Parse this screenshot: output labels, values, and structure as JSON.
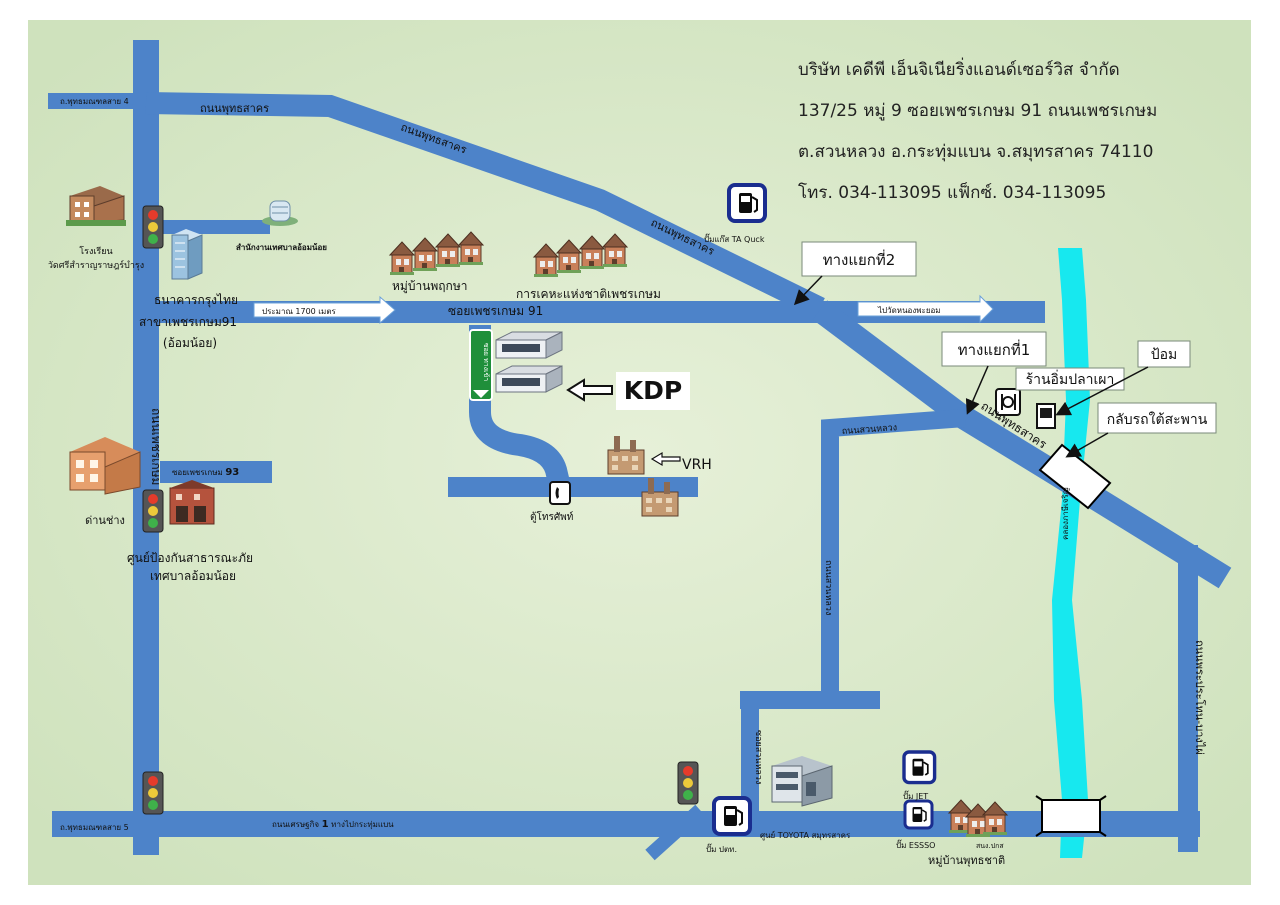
{
  "company": {
    "name": "บริษัท เคดีพี เอ็นจิเนียริ่งแอนด์เซอร์วิส จำกัด",
    "address1": "137/25 หมู่ 9 ซอยเพชรเกษม 91 ถนนเพชรเกษม",
    "address2": "ต.สวนหลวง อ.กระทุ่มแบน จ.สมุทรสาคร 74110",
    "phone": "โทร. 034-113095 แฟ็กซ์. 034-113095"
  },
  "roads": {
    "omnoi4": "ถ.พุทธมณฑลสาย 4",
    "buddhasakhon_top": "ถนนพุทธสาคร",
    "buddhasakhon_diag1": "ถนนพุทธสาคร",
    "buddhasakhon_diag2": "ถนนพุทธสาคร",
    "buddhasakhon_lower": "ถนนพุทธสาคร",
    "petchkasem": "ถนนเพชรเกษม",
    "soi91": "ซอยเพชรเกษม 91",
    "soi93_prefix": "ซอยเพชรเกษม",
    "soi93_num": "93",
    "distance": "ประมาณ 1700 เมตร",
    "to_omnoi": "ไปวัดหนองพะยอม",
    "suanluang": "ถนนสวนหลวง",
    "suanluang_v": "ถนนสวนหลวง",
    "settakit": "ถนนเศรษฐกิจ",
    "settakit_num": "1",
    "settakit_suffix": "ทางไปกระทุ่มแบน",
    "omnoi5": "ถ.พุทธมณฑลสาย 5",
    "klong_v": "ซอยสวนหลวง",
    "canal": "คลองภาษีเจริญ",
    "right_road": "ถนนพระประโทน-บางไผ่",
    "green_sign": "ซอย ทางเข้า"
  },
  "places": {
    "school1": "โรงเรียน",
    "school2": "วัดศรีสำราญราษฎร์บำรุง",
    "municipal": "สำนักงานเทศบาลอ้อมน้อย",
    "bank1": "ธนาคารกรุงไทย",
    "bank2": "สาขาเพชรเกษม91",
    "bank3": "(อ้อมน้อย)",
    "village1": "หมู่บ้านพฤกษา",
    "housing": "การเคหะแห่งชาติเพชรเกษม",
    "ptt_ta": "ปั๊มแก๊ส TA Quck",
    "junction2": "ทางแยกที่2",
    "junction1": "ทางแยกที่1",
    "pom": "ป้อม",
    "restaurant": "ร้านอิ่มปลาเผา",
    "uturn": "กลับรถใต้สะพาน",
    "kdp": "KDP",
    "vrh": "VRH",
    "phone_booth": "ตู้โทรศัพท์",
    "customs": "ด่านช่าง",
    "disaster1": "ศูนย์ป้องกันสาธารณะภัย",
    "disaster2": "เทศบาลอ้อมน้อย",
    "ptt_bottom": "ปั๊ม ปตท.",
    "toyota": "ศูนย์ TOYOTA สมุทรสาคร",
    "jet": "ปั๊ม JET",
    "esso": "ปั๊ม ESSSO",
    "village2": "หมู่บ้านพุทธชาติ",
    "smallvillage": "สนง.ปกส"
  },
  "colors": {
    "background": "#d4e6c3",
    "road": "#4d83c9",
    "canal": "#17e8ef",
    "pump_border": "#1a2d8f"
  },
  "icons": {
    "fuel": "fuel-pump-icon",
    "traffic": "traffic-light-icon",
    "phone": "telephone-icon",
    "building": "building-icon",
    "factory": "factory-icon",
    "restaurant": "restaurant-icon",
    "bridge": "bridge-icon"
  }
}
